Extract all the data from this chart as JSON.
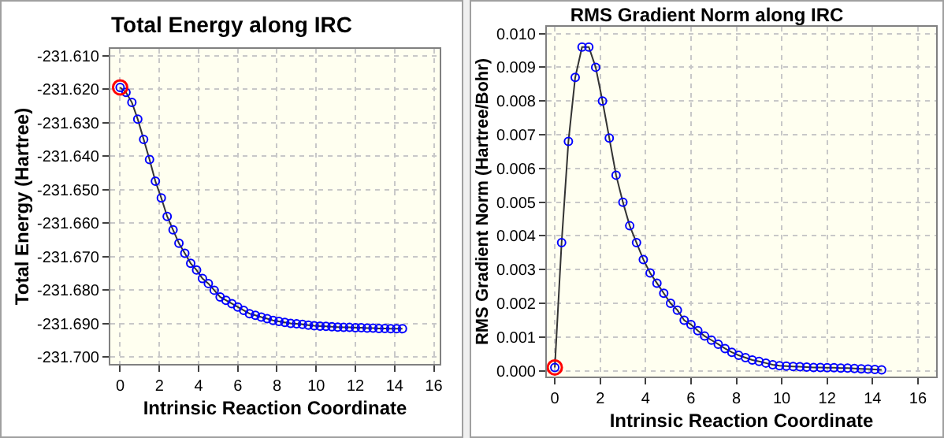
{
  "chart_data": [
    {
      "type": "line",
      "title": "Total Energy along IRC",
      "xlabel": "Intrinsic Reaction Coordinate",
      "ylabel": "Total Energy (Hartree)",
      "xlim": [
        -0.5,
        16.3
      ],
      "xticks": [
        0,
        2,
        4,
        6,
        8,
        10,
        12,
        14,
        16
      ],
      "ylim": [
        -231.702,
        -231.608
      ],
      "yticks": [
        {
          "value": -231.7,
          "label": "-231.700"
        },
        {
          "value": -231.69,
          "label": "-231.690"
        },
        {
          "value": -231.68,
          "label": "-231.680"
        },
        {
          "value": -231.67,
          "label": "-231.670"
        },
        {
          "value": -231.66,
          "label": "-231.660"
        },
        {
          "value": -231.65,
          "label": "-231.650"
        },
        {
          "value": -231.64,
          "label": "-231.640"
        },
        {
          "value": -231.63,
          "label": "-231.630"
        },
        {
          "value": -231.62,
          "label": "-231.620"
        },
        {
          "value": -231.61,
          "label": "-231.610"
        }
      ],
      "grid": true,
      "marker": "circle",
      "line_style": "solid",
      "x": [
        0,
        0.3,
        0.6,
        0.9,
        1.2,
        1.5,
        1.8,
        2.1,
        2.4,
        2.7,
        3.0,
        3.3,
        3.6,
        3.9,
        4.2,
        4.5,
        4.8,
        5.1,
        5.4,
        5.7,
        6.0,
        6.3,
        6.6,
        6.9,
        7.2,
        7.5,
        7.8,
        8.1,
        8.4,
        8.7,
        9.0,
        9.3,
        9.6,
        9.9,
        10.2,
        10.5,
        10.8,
        11.1,
        11.4,
        11.7,
        12.0,
        12.3,
        12.6,
        12.9,
        13.2,
        13.5,
        13.8,
        14.1,
        14.4
      ],
      "series": [
        {
          "color": "#0000ff",
          "values": [
            -231.6195,
            -231.621,
            -231.624,
            -231.629,
            -231.635,
            -231.641,
            -231.6475,
            -231.6525,
            -231.658,
            -231.662,
            -231.666,
            -231.669,
            -231.672,
            -231.674,
            -231.6765,
            -231.678,
            -231.68,
            -231.682,
            -231.683,
            -231.684,
            -231.685,
            -231.686,
            -231.687,
            -231.6875,
            -231.688,
            -231.6885,
            -231.689,
            -231.6893,
            -231.6896,
            -231.6899,
            -231.69,
            -231.6902,
            -231.6904,
            -231.6906,
            -231.6907,
            -231.6908,
            -231.6909,
            -231.691,
            -231.6911,
            -231.6911,
            -231.6912,
            -231.6912,
            -231.6913,
            -231.6913,
            -231.6914,
            -231.6914,
            -231.6915,
            -231.6915,
            -231.6915
          ]
        },
        {
          "type": "scatter",
          "color": "#ff0000",
          "x": [
            0
          ],
          "values": [
            -231.6195
          ]
        }
      ]
    },
    {
      "type": "line",
      "title": "RMS Gradient Norm along IRC",
      "xlabel": "Intrinsic Reaction Coordinate",
      "ylabel": "RMS Gradient Norm (Hartree/Bohr)",
      "xlim": [
        -0.35,
        16.8
      ],
      "xticks": [
        0,
        2,
        4,
        6,
        8,
        10,
        12,
        14,
        16
      ],
      "ylim": [
        -0.00017,
        0.0102
      ],
      "yticks": [
        {
          "value": 0,
          "label": "0.000"
        },
        {
          "value": 0.001,
          "label": "0.001"
        },
        {
          "value": 0.002,
          "label": "0.002"
        },
        {
          "value": 0.003,
          "label": "0.003"
        },
        {
          "value": 0.004,
          "label": "0.004"
        },
        {
          "value": 0.005,
          "label": "0.005"
        },
        {
          "value": 0.006,
          "label": "0.006"
        },
        {
          "value": 0.007,
          "label": "0.007"
        },
        {
          "value": 0.008,
          "label": "0.008"
        },
        {
          "value": 0.009,
          "label": "0.009"
        },
        {
          "value": 0.01,
          "label": "0.010"
        }
      ],
      "grid": true,
      "marker": "circle",
      "line_style": "solid",
      "x": [
        0,
        0.3,
        0.6,
        0.9,
        1.2,
        1.5,
        1.8,
        2.1,
        2.4,
        2.7,
        3.0,
        3.3,
        3.6,
        3.9,
        4.2,
        4.5,
        4.8,
        5.1,
        5.4,
        5.7,
        6.0,
        6.3,
        6.6,
        6.9,
        7.2,
        7.5,
        7.8,
        8.1,
        8.4,
        8.7,
        9.0,
        9.3,
        9.6,
        9.9,
        10.2,
        10.5,
        10.8,
        11.1,
        11.4,
        11.7,
        12.0,
        12.3,
        12.6,
        12.9,
        13.2,
        13.5,
        13.8,
        14.1,
        14.4
      ],
      "series": [
        {
          "color": "#0000ff",
          "values": [
            0.0001,
            0.0038,
            0.0068,
            0.0087,
            0.0096,
            0.0096,
            0.009,
            0.008,
            0.0069,
            0.0058,
            0.005,
            0.0043,
            0.0038,
            0.0033,
            0.0029,
            0.0026,
            0.0023,
            0.002,
            0.0018,
            0.0015,
            0.00137,
            0.00119,
            0.00103,
            0.00091,
            0.00079,
            0.00066,
            0.00055,
            0.00046,
            0.00039,
            0.00032,
            0.00028,
            0.00023,
            0.00018,
            0.00015,
            0.00014,
            0.00013,
            0.00012,
            0.00011,
            0.0001,
            0.0001,
            9e-05,
            9e-05,
            8e-05,
            8e-05,
            7e-05,
            6e-05,
            5e-05,
            4e-05,
            3e-05
          ]
        },
        {
          "type": "scatter",
          "color": "#ff0000",
          "x": [
            0
          ],
          "values": [
            0.0001
          ]
        }
      ]
    }
  ]
}
